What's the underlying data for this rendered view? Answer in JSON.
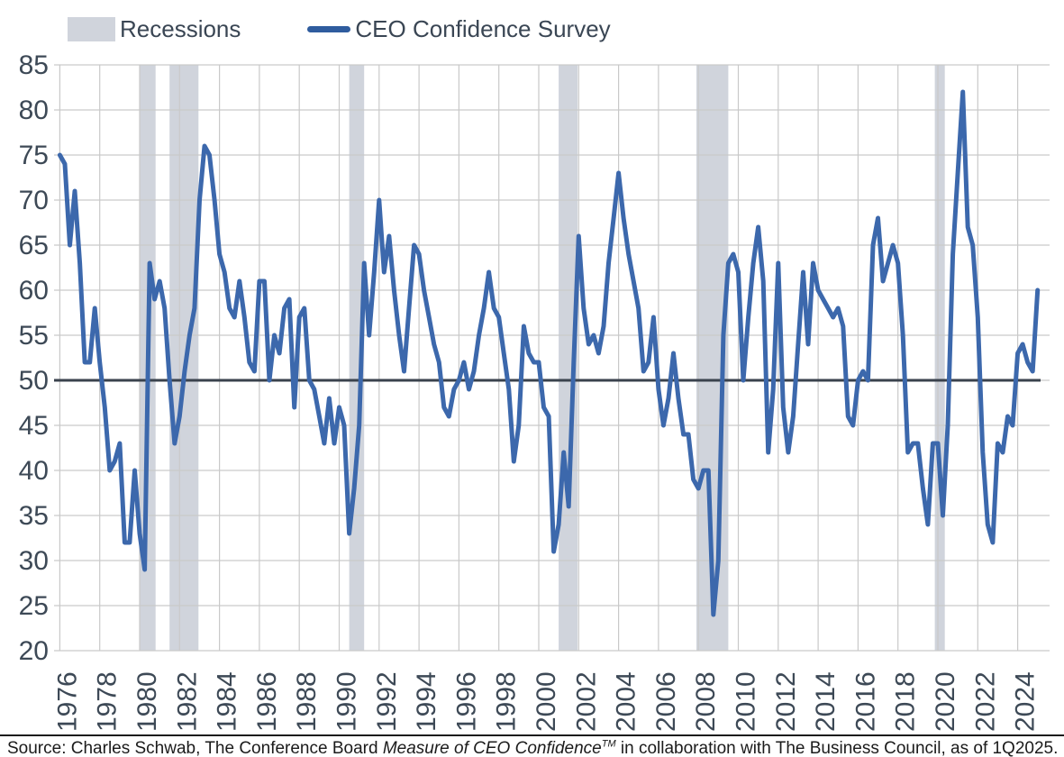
{
  "legend": {
    "items": [
      {
        "label": "Recessions",
        "type": "area"
      },
      {
        "label": "CEO Confidence Survey",
        "type": "line"
      }
    ]
  },
  "source": {
    "prefix": "Source: Charles Schwab, The Conference Board ",
    "italic": "Measure of CEO Confidence",
    "superscript": "TM",
    "suffix": " in collaboration with The Business Council, as of 1Q2025."
  },
  "colors": {
    "series_line": "#3C68AC",
    "legend_line": "#2F5C9E",
    "recession_band": "#D0D4DC",
    "reference_line": "#3A424D",
    "gridline": "#C9C9C9",
    "axis_text": "#3D4956",
    "source_text": "#1b1b1b",
    "footer_rule": "#1C1C1C",
    "background": "#FFFFFF"
  },
  "chart_data": {
    "type": "line",
    "title": "",
    "xlabel": "",
    "ylabel": "",
    "frequency": "quarterly",
    "x_start": 1976.0,
    "x_interval_years": 0.25,
    "xlim": [
      1975.8,
      2025.6
    ],
    "ylim": [
      20,
      85
    ],
    "x_ticks": [
      1976,
      1978,
      1980,
      1982,
      1984,
      1986,
      1988,
      1990,
      1992,
      1994,
      1996,
      1998,
      2000,
      2002,
      2004,
      2006,
      2008,
      2010,
      2012,
      2014,
      2016,
      2018,
      2020,
      2022,
      2024
    ],
    "y_ticks": [
      20,
      25,
      30,
      35,
      40,
      45,
      50,
      55,
      60,
      65,
      70,
      75,
      80,
      85
    ],
    "grid": "both",
    "legend_position": "top-left",
    "reference_line_y": 50,
    "series": [
      {
        "name": "CEO Confidence Survey",
        "values": [
          75,
          74,
          65,
          71,
          63,
          52,
          52,
          58,
          52,
          47,
          40,
          41,
          43,
          32,
          32,
          40,
          33,
          29,
          63,
          59,
          61,
          58,
          50,
          43,
          46,
          51,
          55,
          58,
          70,
          76,
          75,
          70,
          64,
          62,
          58,
          57,
          61,
          57,
          52,
          51,
          61,
          61,
          50,
          55,
          53,
          58,
          59,
          47,
          57,
          58,
          50,
          49,
          46,
          43,
          48,
          43,
          47,
          45,
          33,
          38,
          45,
          63,
          55,
          62,
          70,
          62,
          66,
          60,
          55,
          51,
          58,
          65,
          64,
          60,
          57,
          54,
          52,
          47,
          46,
          49,
          50,
          52,
          49,
          51,
          55,
          58,
          62,
          58,
          57,
          53,
          49,
          41,
          45,
          56,
          53,
          52,
          52,
          47,
          46,
          31,
          34,
          42,
          36,
          52,
          66,
          58,
          54,
          55,
          53,
          56,
          63,
          68,
          73,
          68,
          64,
          61,
          58,
          51,
          52,
          57,
          49,
          45,
          48,
          53,
          48,
          44,
          44,
          39,
          38,
          40,
          40,
          24,
          30,
          55,
          63,
          64,
          62,
          50,
          57,
          63,
          67,
          61,
          42,
          49,
          63,
          47,
          42,
          46,
          54,
          62,
          54,
          63,
          60,
          59,
          58,
          57,
          58,
          56,
          46,
          45,
          50,
          51,
          50,
          65,
          68,
          61,
          63,
          65,
          63,
          55,
          42,
          43,
          43,
          38,
          34,
          43,
          43,
          35,
          45,
          64,
          73,
          82,
          67,
          65,
          57,
          42,
          34,
          32,
          43,
          42,
          46,
          45,
          53,
          54,
          52,
          51,
          60
        ]
      }
    ],
    "recessions": [
      {
        "start": 1980.0,
        "end": 1980.8
      },
      {
        "start": 1981.5,
        "end": 1982.95
      },
      {
        "start": 1990.5,
        "end": 1991.25
      },
      {
        "start": 2001.0,
        "end": 2001.95
      },
      {
        "start": 2007.9,
        "end": 2009.5
      },
      {
        "start": 2019.85,
        "end": 2020.35
      }
    ]
  }
}
